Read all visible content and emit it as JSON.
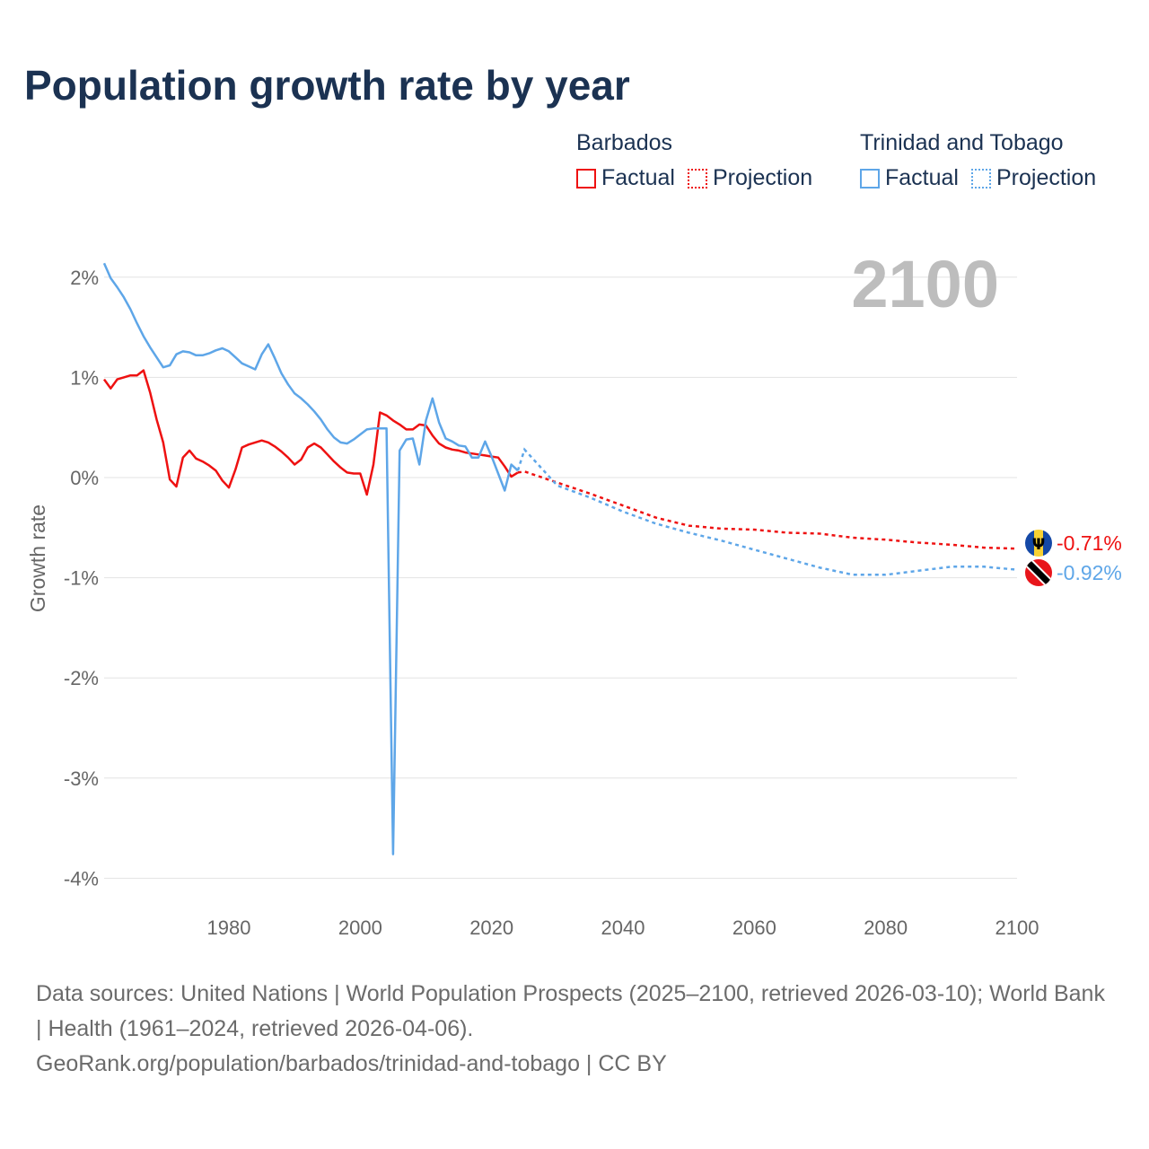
{
  "chart_data": {
    "type": "line",
    "title": "Population growth rate by year",
    "ylabel": "Growth rate",
    "xlabel": "",
    "xlim": [
      1961,
      2100
    ],
    "ylim": [
      -4.4,
      2.2
    ],
    "x_ticks": [
      1980,
      2000,
      2020,
      2040,
      2060,
      2080,
      2100
    ],
    "x_tick_labels": [
      "1980",
      "2000",
      "2020",
      "2040",
      "2060",
      "2080",
      "2100"
    ],
    "y_ticks": [
      2,
      1,
      0,
      -1,
      -2,
      -3,
      -4
    ],
    "y_tick_labels": [
      "2%",
      "1%",
      "0%",
      "-1%",
      "-2%",
      "-3%",
      "-4%"
    ],
    "grid": true,
    "year_label": "2100",
    "legend": {
      "placement": "top-right",
      "groups": [
        {
          "name": "Barbados",
          "factual": "Factual",
          "projection": "Projection",
          "color": "#ee1111"
        },
        {
          "name": "Trinidad and Tobago",
          "factual": "Factual",
          "projection": "Projection",
          "color": "#5ea6e8"
        }
      ]
    },
    "series": [
      {
        "name": "Barbados",
        "color": "#ee1111",
        "end_label": "-0.71%",
        "factual_start": 1961,
        "factual": [
          0.98,
          0.89,
          0.98,
          1.0,
          1.02,
          1.02,
          1.07,
          0.85,
          0.58,
          0.35,
          -0.02,
          -0.09,
          0.2,
          0.27,
          0.19,
          0.16,
          0.12,
          0.07,
          -0.03,
          -0.1,
          0.08,
          0.3,
          0.33,
          0.35,
          0.37,
          0.35,
          0.31,
          0.26,
          0.2,
          0.13,
          0.18,
          0.3,
          0.34,
          0.3,
          0.23,
          0.16,
          0.1,
          0.05,
          0.04,
          0.04,
          -0.17,
          0.13,
          0.65,
          0.62,
          0.57,
          0.53,
          0.48,
          0.48,
          0.53,
          0.52,
          0.42,
          0.34,
          0.3,
          0.28,
          0.27,
          0.25,
          0.24,
          0.23,
          0.22,
          0.21,
          0.2,
          0.11,
          0.01,
          0.05
        ],
        "projection_x": [
          2024,
          2025,
          2030,
          2035,
          2040,
          2045,
          2050,
          2055,
          2060,
          2065,
          2070,
          2075,
          2080,
          2085,
          2090,
          2095,
          2100
        ],
        "projection": [
          0.05,
          0.06,
          -0.05,
          -0.16,
          -0.28,
          -0.4,
          -0.48,
          -0.51,
          -0.52,
          -0.55,
          -0.56,
          -0.6,
          -0.62,
          -0.65,
          -0.67,
          -0.7,
          -0.71
        ]
      },
      {
        "name": "Trinidad and Tobago",
        "color": "#5ea6e8",
        "end_label": "-0.92%",
        "factual_start": 1961,
        "factual": [
          2.14,
          1.99,
          1.9,
          1.8,
          1.68,
          1.54,
          1.41,
          1.3,
          1.2,
          1.1,
          1.12,
          1.23,
          1.26,
          1.25,
          1.22,
          1.22,
          1.24,
          1.27,
          1.29,
          1.26,
          1.2,
          1.14,
          1.11,
          1.08,
          1.23,
          1.33,
          1.19,
          1.04,
          0.93,
          0.84,
          0.79,
          0.73,
          0.66,
          0.58,
          0.48,
          0.4,
          0.35,
          0.34,
          0.38,
          0.43,
          0.48,
          0.49,
          0.49,
          0.49,
          -3.76,
          0.27,
          0.38,
          0.39,
          0.13,
          0.57,
          0.79,
          0.55,
          0.39,
          0.36,
          0.32,
          0.31,
          0.2,
          0.2,
          0.36,
          0.21,
          0.04,
          -0.13,
          0.13,
          0.07
        ],
        "projection_x": [
          2024,
          2025,
          2030,
          2035,
          2040,
          2045,
          2050,
          2055,
          2060,
          2065,
          2070,
          2075,
          2080,
          2085,
          2090,
          2095,
          2100
        ],
        "projection": [
          0.07,
          0.28,
          -0.08,
          -0.2,
          -0.34,
          -0.46,
          -0.55,
          -0.63,
          -0.72,
          -0.81,
          -0.9,
          -0.97,
          -0.97,
          -0.93,
          -0.89,
          -0.89,
          -0.92
        ]
      }
    ]
  },
  "source": {
    "line1": "Data sources: United Nations | World Population Prospects (2025–2100, retrieved 2026-03-10); World Bank | Health (1961–2024, retrieved 2026-04-06).",
    "line2": "GeoRank.org/population/barbados/trinidad-and-tobago | CC BY"
  }
}
